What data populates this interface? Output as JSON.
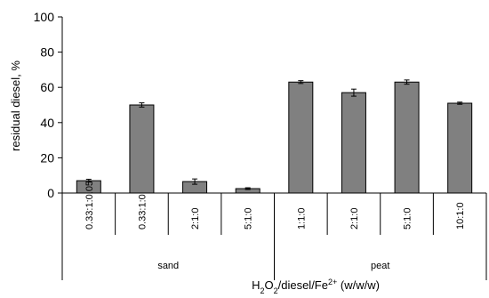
{
  "chart_data": {
    "type": "bar",
    "categories": [
      "0.33:1:0.05",
      "0.33:1:0",
      "2:1:0",
      "5:1:0",
      "1:1:0",
      "2:1:0",
      "5:1:0",
      "10:1:0"
    ],
    "groups": [
      {
        "label": "sand",
        "count": 4
      },
      {
        "label": "peat",
        "count": 4
      }
    ],
    "series": [
      {
        "values": [
          7,
          50,
          6.5,
          2.5,
          63,
          57,
          63,
          51
        ],
        "errors": [
          0.8,
          1.2,
          1.5,
          0.5,
          0.8,
          2.0,
          1.2,
          0.6
        ]
      }
    ],
    "ylim": [
      0,
      100
    ],
    "yticks": [
      0,
      20,
      40,
      60,
      80,
      100
    ],
    "ylabel": "residual diesel, %",
    "xlabel": {
      "a": "H",
      "a_sub": "2",
      "b": "O",
      "b_sub": "2",
      "c": "/diesel/Fe",
      "c_sup": "2+",
      "d": " (w/w/w)"
    },
    "bar_color": "#808080",
    "grid": false
  }
}
